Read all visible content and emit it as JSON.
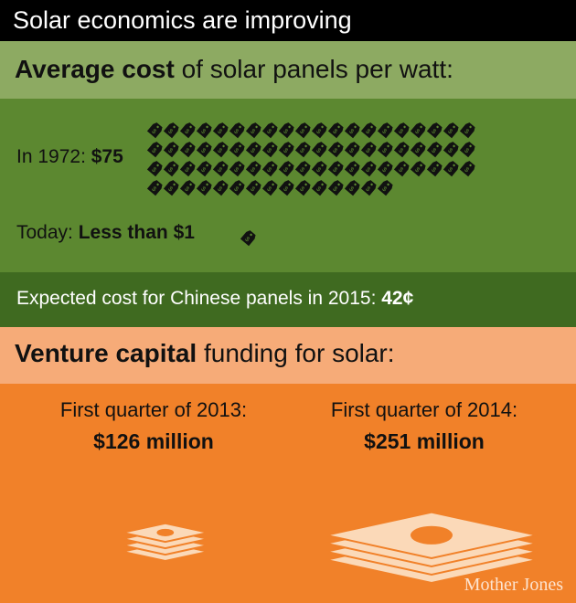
{
  "title": "Solar economics are improving",
  "cost_section": {
    "header_bold": "Average cost",
    "header_rest": " of solar panels per watt:",
    "row_1972_label": "In 1972: ",
    "row_1972_value": "$75",
    "row_today_label": "Today: ",
    "row_today_value": "Less than $1",
    "chinese_label": "Expected cost for Chinese panels in 2015: ",
    "chinese_value": "42¢"
  },
  "vc_section": {
    "header_bold": "Venture capital",
    "header_rest": " funding for solar:",
    "q2013_label": "First quarter of 2013:",
    "q2013_value": "$126 million",
    "q2014_label": "First quarter of 2014:",
    "q2014_value": "$251 million"
  },
  "credit": "Mother Jones",
  "colors": {
    "title_bg": "#000000",
    "cost_header_bg": "#8daa62",
    "cost_body_bg": "#5c8830",
    "chinese_bg": "#3f6a20",
    "vc_header_bg": "#f6ab78",
    "vc_body_bg": "#f18129",
    "money_stack": "#fbd9b8"
  },
  "icons": {
    "price_tag": "price-tag-icon",
    "money_stack": "money-stack-icon"
  },
  "chart_data": {
    "type": "pictograph",
    "panels": [
      {
        "measure": "cost_per_watt",
        "categories": [
          "In 1972",
          "Today",
          "Chinese panels 2015 (expected)"
        ],
        "values": [
          75,
          1,
          0.42
        ],
        "unit": "$ per watt"
      },
      {
        "measure": "venture_capital_funding",
        "categories": [
          "First quarter of 2013",
          "First quarter of 2014"
        ],
        "values": [
          126,
          251
        ],
        "unit": "$ million"
      }
    ]
  }
}
